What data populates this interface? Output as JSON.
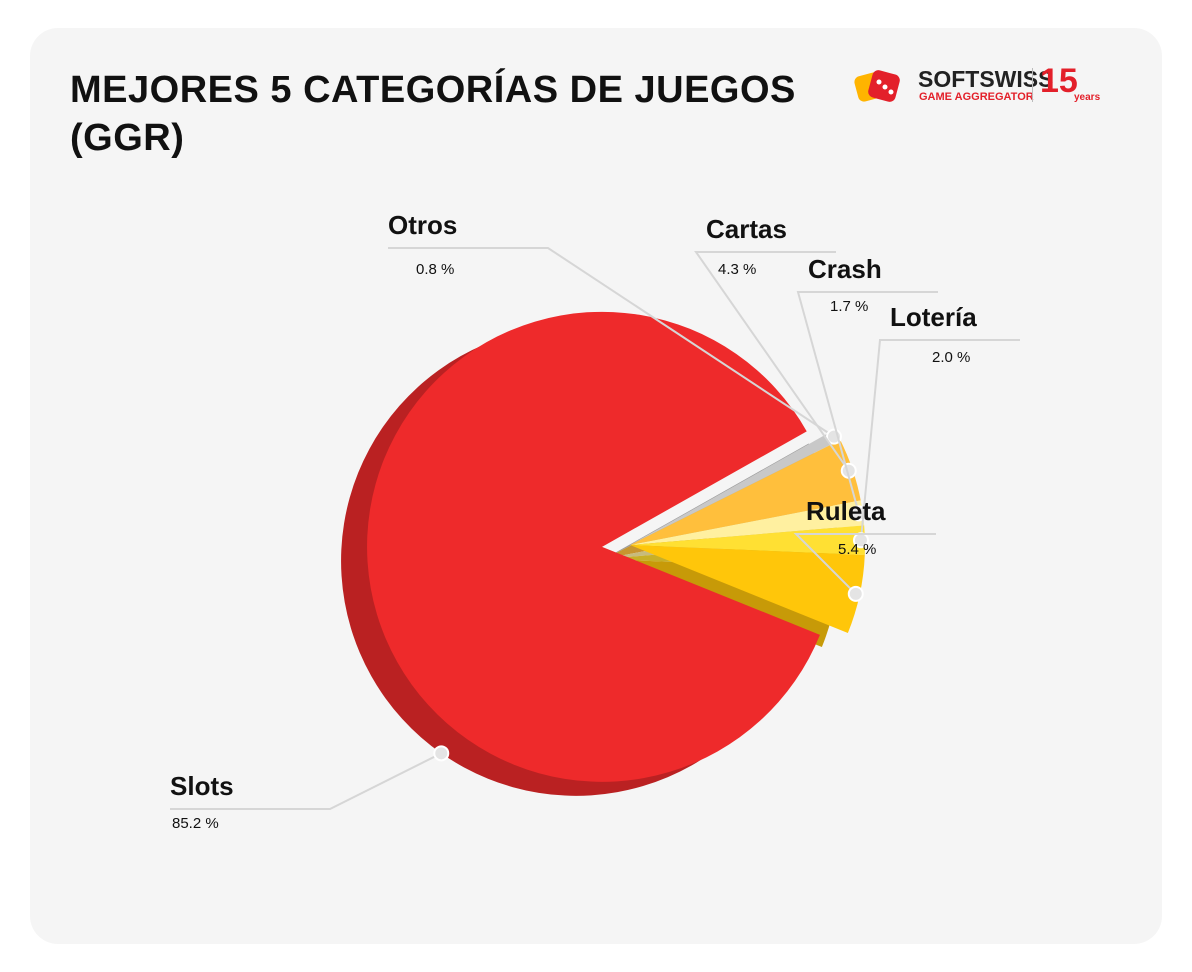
{
  "title": "MEJORES 5 CATEGORÍAS DE JUEGOS (GGR)",
  "logo": {
    "brand": "SOFTSWISS",
    "sub": "GAME AGGREGATOR",
    "anniv": "15",
    "anniv_sub": "years"
  },
  "chart_data": {
    "type": "pie",
    "title": "MEJORES 5 CATEGORÍAS DE JUEGOS (GGR)",
    "unit": "%",
    "slices": [
      {
        "label": "Slots",
        "value": 85.2,
        "display": "85.2 %",
        "color": "#ee2a2b",
        "exploded": true
      },
      {
        "label": "Otros",
        "value": 0.8,
        "display": "0.8 %",
        "color": "#c8c8c8"
      },
      {
        "label": "Cartas",
        "value": 4.3,
        "display": "4.3 %",
        "color": "#ffbf3c"
      },
      {
        "label": "Crash",
        "value": 1.7,
        "display": "1.7 %",
        "color": "#fff0a0"
      },
      {
        "label": "Lotería",
        "value": 2.0,
        "display": "2.0 %",
        "color": "#ffe033"
      },
      {
        "label": "Ruleta",
        "value": 5.4,
        "display": "5.4 %",
        "color": "#ffc60a"
      }
    ]
  }
}
